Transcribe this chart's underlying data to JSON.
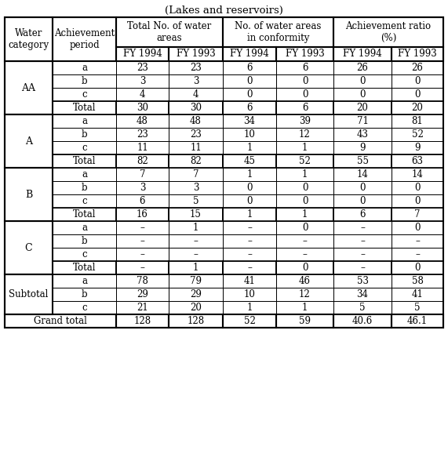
{
  "title": "(Lakes and reservoirs)",
  "sections": [
    {
      "category": "AA",
      "rows": [
        [
          "a",
          "23",
          "23",
          "6",
          "6",
          "26",
          "26"
        ],
        [
          "b",
          "3",
          "3",
          "0",
          "0",
          "0",
          "0"
        ],
        [
          "c",
          "4",
          "4",
          "0",
          "0",
          "0",
          "0"
        ]
      ],
      "total": [
        "Total",
        "30",
        "30",
        "6",
        "6",
        "20",
        "20"
      ]
    },
    {
      "category": "A",
      "rows": [
        [
          "a",
          "48",
          "48",
          "34",
          "39",
          "71",
          "81"
        ],
        [
          "b",
          "23",
          "23",
          "10",
          "12",
          "43",
          "52"
        ],
        [
          "c",
          "11",
          "11",
          "1",
          "1",
          "9",
          "9"
        ]
      ],
      "total": [
        "Total",
        "82",
        "82",
        "45",
        "52",
        "55",
        "63"
      ]
    },
    {
      "category": "B",
      "rows": [
        [
          "a",
          "7",
          "7",
          "1",
          "1",
          "14",
          "14"
        ],
        [
          "b",
          "3",
          "3",
          "0",
          "0",
          "0",
          "0"
        ],
        [
          "c",
          "6",
          "5",
          "0",
          "0",
          "0",
          "0"
        ]
      ],
      "total": [
        "Total",
        "16",
        "15",
        "1",
        "1",
        "6",
        "7"
      ]
    },
    {
      "category": "C",
      "rows": [
        [
          "a",
          "–",
          "1",
          "–",
          "0",
          "–",
          "0"
        ],
        [
          "b",
          "–",
          "–",
          "–",
          "–",
          "–",
          "–"
        ],
        [
          "c",
          "–",
          "–",
          "–",
          "–",
          "–",
          "–"
        ]
      ],
      "total": [
        "Total",
        "–",
        "1",
        "–",
        "0",
        "–",
        "0"
      ]
    }
  ],
  "subtotal": {
    "category": "Subtotal",
    "rows": [
      [
        "a",
        "78",
        "79",
        "41",
        "46",
        "53",
        "58"
      ],
      [
        "b",
        "29",
        "29",
        "10",
        "12",
        "34",
        "41"
      ],
      [
        "c",
        "21",
        "20",
        "1",
        "1",
        "5",
        "5"
      ]
    ]
  },
  "grand_total": [
    "Grand total",
    "128",
    "128",
    "52",
    "59",
    "40.6",
    "46.1"
  ],
  "bg_color": "#ffffff",
  "font_size": 8.5,
  "title_font_size": 9.5
}
